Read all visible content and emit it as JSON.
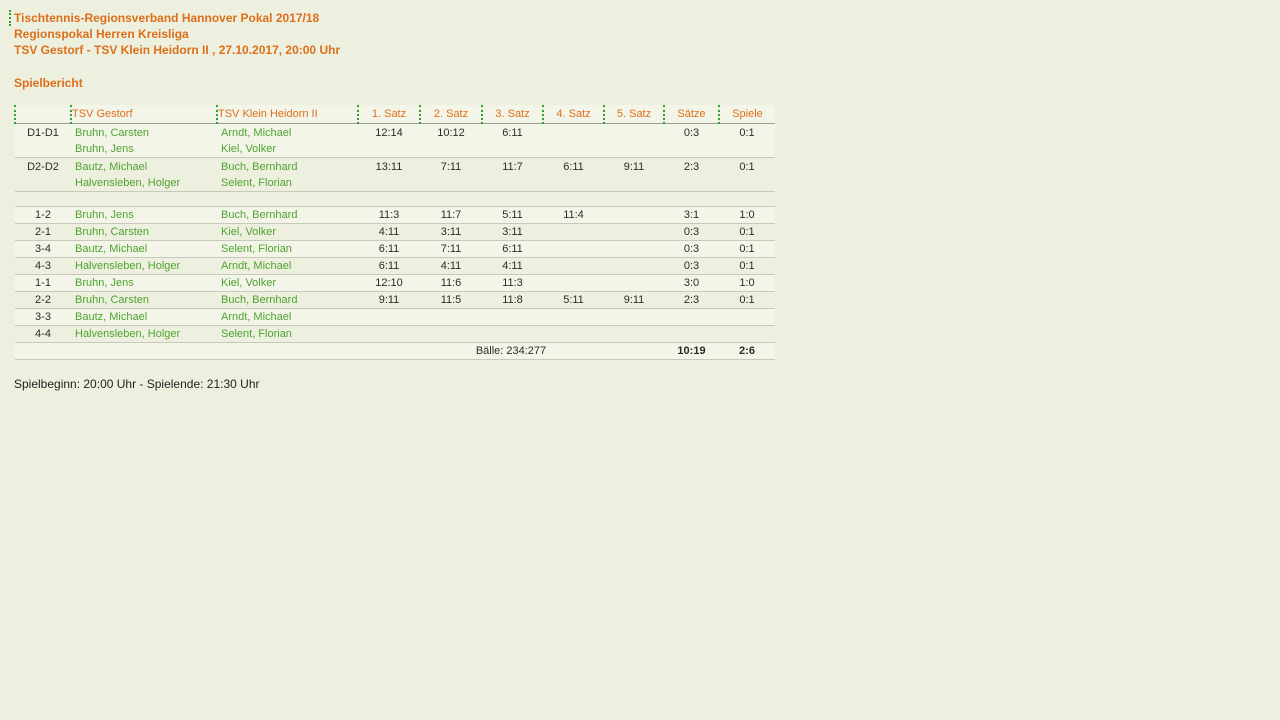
{
  "colors": {
    "background": "#eef0df",
    "accent_orange": "#dd6e1a",
    "player_green": "#4da32f",
    "row_light": "#f4f5e9",
    "dotted_border_green": "#2fa12f"
  },
  "header": {
    "line1": "Tischtennis-Regionsverband Hannover Pokal 2017/18",
    "line2": "Regionspokal Herren Kreisliga",
    "line3": "TSV Gestorf - TSV Klein Heidorn II , 27.10.2017, 20:00 Uhr",
    "section_title": "Spielbericht"
  },
  "table": {
    "headers": [
      "",
      "TSV Gestorf",
      "TSV Klein Heidorn II",
      "1. Satz",
      "2. Satz",
      "3. Satz",
      "4. Satz",
      "5. Satz",
      "Sätze",
      "Spiele"
    ],
    "doubles": [
      {
        "code": "D1-D1",
        "home": [
          "Bruhn, Carsten",
          "Bruhn, Jens"
        ],
        "away": [
          "Arndt, Michael",
          "Kiel, Volker"
        ],
        "sets": [
          "12:14",
          "10:12",
          "6:11",
          "",
          ""
        ],
        "saetze": "0:3",
        "spiele": "0:1"
      },
      {
        "code": "D2-D2",
        "home": [
          "Bautz, Michael",
          "Halvensleben, Holger"
        ],
        "away": [
          "Buch, Bernhard",
          "Selent, Florian"
        ],
        "sets": [
          "13:11",
          "7:11",
          "11:7",
          "6:11",
          "9:11"
        ],
        "saetze": "2:3",
        "spiele": "0:1"
      }
    ],
    "singles": [
      {
        "code": "1-2",
        "home": "Bruhn, Jens",
        "away": "Buch, Bernhard",
        "sets": [
          "11:3",
          "11:7",
          "5:11",
          "11:4",
          ""
        ],
        "saetze": "3:1",
        "spiele": "1:0"
      },
      {
        "code": "2-1",
        "home": "Bruhn, Carsten",
        "away": "Kiel, Volker",
        "sets": [
          "4:11",
          "3:11",
          "3:11",
          "",
          ""
        ],
        "saetze": "0:3",
        "spiele": "0:1"
      },
      {
        "code": "3-4",
        "home": "Bautz, Michael",
        "away": "Selent, Florian",
        "sets": [
          "6:11",
          "7:11",
          "6:11",
          "",
          ""
        ],
        "saetze": "0:3",
        "spiele": "0:1"
      },
      {
        "code": "4-3",
        "home": "Halvensleben, Holger",
        "away": "Arndt, Michael",
        "sets": [
          "6:11",
          "4:11",
          "4:11",
          "",
          ""
        ],
        "saetze": "0:3",
        "spiele": "0:1"
      },
      {
        "code": "1-1",
        "home": "Bruhn, Jens",
        "away": "Kiel, Volker",
        "sets": [
          "12:10",
          "11:6",
          "11:3",
          "",
          ""
        ],
        "saetze": "3:0",
        "spiele": "1:0"
      },
      {
        "code": "2-2",
        "home": "Bruhn, Carsten",
        "away": "Buch, Bernhard",
        "sets": [
          "9:11",
          "11:5",
          "11:8",
          "5:11",
          "9:11"
        ],
        "saetze": "2:3",
        "spiele": "0:1"
      },
      {
        "code": "3-3",
        "home": "Bautz, Michael",
        "away": "Arndt, Michael",
        "sets": [
          "",
          "",
          "",
          "",
          ""
        ],
        "saetze": "",
        "spiele": ""
      },
      {
        "code": "4-4",
        "home": "Halvensleben, Holger",
        "away": "Selent, Florian",
        "sets": [
          "",
          "",
          "",
          "",
          ""
        ],
        "saetze": "",
        "spiele": ""
      }
    ],
    "totals": {
      "label": "Bälle: 234:277",
      "saetze": "10:19",
      "spiele": "2:6"
    }
  },
  "footer": {
    "times": "Spielbeginn: 20:00 Uhr - Spielende: 21:30 Uhr"
  }
}
